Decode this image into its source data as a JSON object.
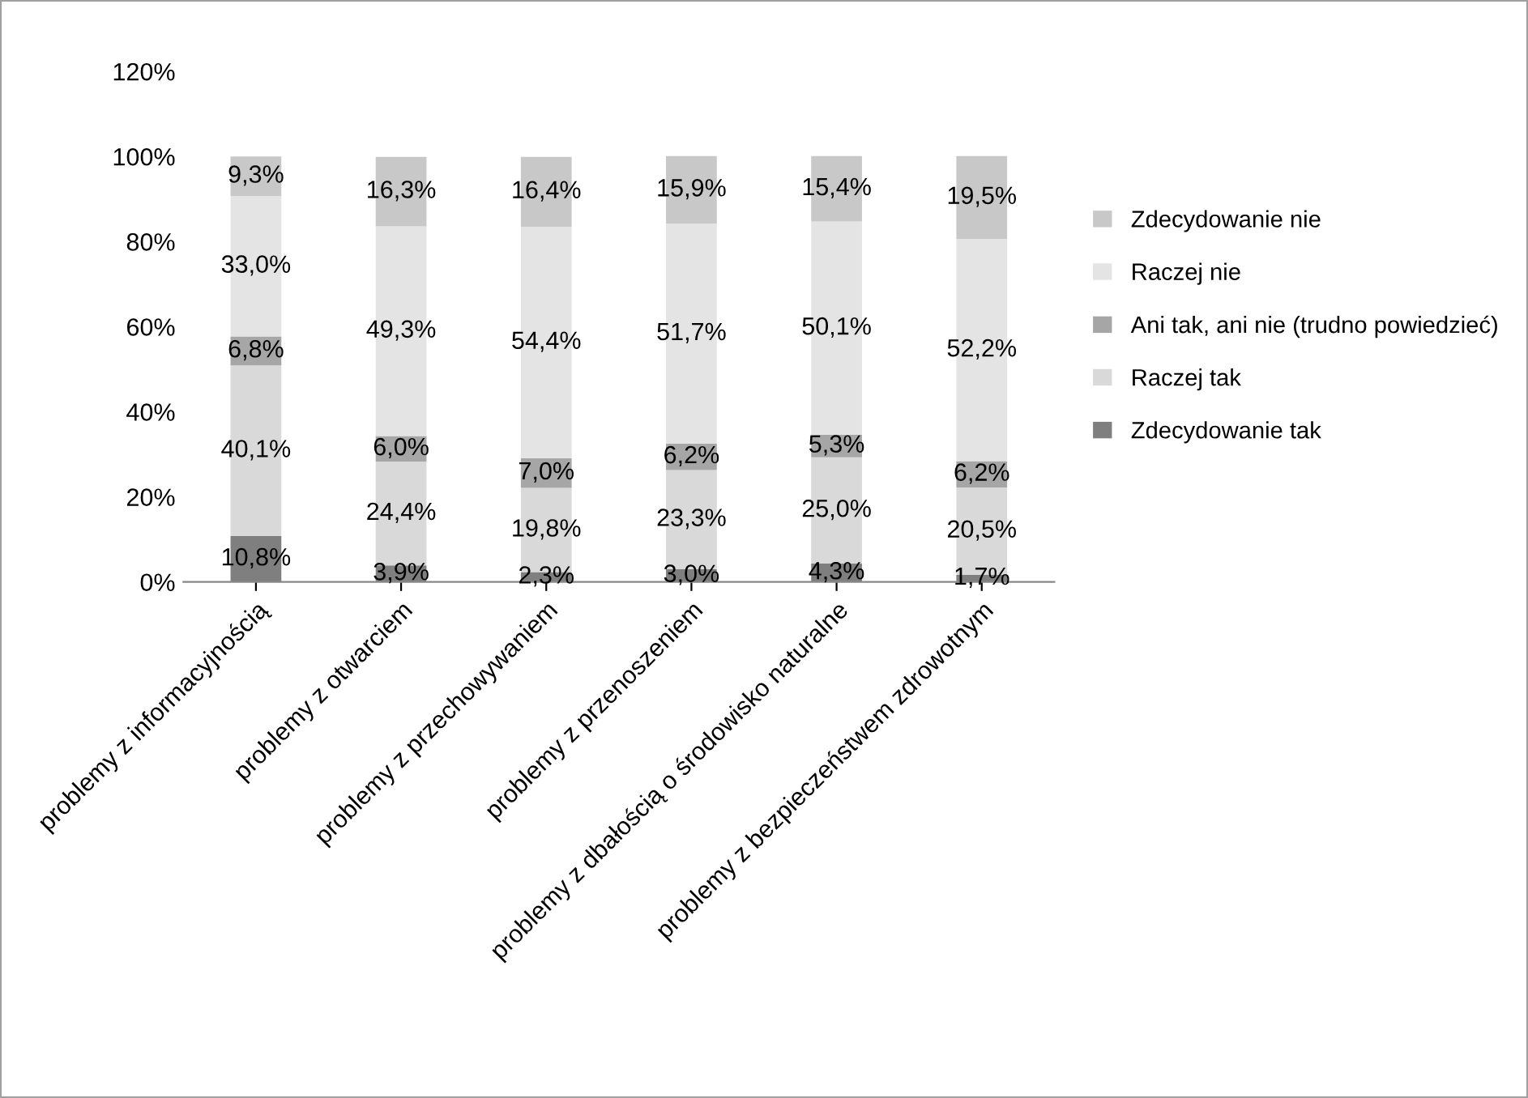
{
  "chart_data": {
    "type": "bar",
    "stacked": true,
    "categories": [
      "problemy z informacyjnością",
      "problemy z otwarciem",
      "problemy z przechowywaniem",
      "problemy z przenoszeniem",
      "problemy z dbałością o środowisko naturalne",
      "problemy z bezpieczeństwem zdrowotnym"
    ],
    "series": [
      {
        "name": "Zdecydowanie tak",
        "color": "#7f7f7f",
        "values": [
          10.8,
          3.9,
          2.3,
          3.0,
          4.3,
          1.7
        ],
        "value_labels": [
          "10,8%",
          "3,9%",
          "2,3%",
          "3,0%",
          "4,3%",
          "1,7%"
        ]
      },
      {
        "name": "Raczej tak",
        "color": "#d9d9d9",
        "values": [
          40.1,
          24.4,
          19.8,
          23.3,
          25.0,
          20.5
        ],
        "value_labels": [
          "40,1%",
          "24,4%",
          "19,8%",
          "23,3%",
          "25,0%",
          "20,5%"
        ]
      },
      {
        "name": "Ani tak, ani nie (trudno powiedzieć)",
        "color": "#a6a6a6",
        "values": [
          6.8,
          6.0,
          7.0,
          6.2,
          5.3,
          6.2
        ],
        "value_labels": [
          "6,8%",
          "6,0%",
          "7,0%",
          "6,2%",
          "5,3%",
          "6,2%"
        ]
      },
      {
        "name": "Raczej nie",
        "color": "#e4e4e4",
        "values": [
          33.0,
          49.3,
          54.4,
          51.7,
          50.1,
          52.2
        ],
        "value_labels": [
          "33,0%",
          "49,3%",
          "54,4%",
          "51,7%",
          "50,1%",
          "52,2%"
        ]
      },
      {
        "name": "Zdecydowanie nie",
        "color": "#c8c8c8",
        "values": [
          9.3,
          16.3,
          16.4,
          15.9,
          15.4,
          19.5
        ],
        "value_labels": [
          "9,3%",
          "16,3%",
          "16,4%",
          "15,9%",
          "15,4%",
          "19,5%"
        ]
      }
    ],
    "ylim": [
      0,
      120
    ],
    "yticks": [
      {
        "value": 0,
        "label": "0%"
      },
      {
        "value": 20,
        "label": "20%"
      },
      {
        "value": 40,
        "label": "40%"
      },
      {
        "value": 60,
        "label": "60%"
      },
      {
        "value": 80,
        "label": "80%"
      },
      {
        "value": 100,
        "label": "100%"
      },
      {
        "value": 120,
        "label": "120%"
      }
    ],
    "grid": false,
    "legend": "right"
  }
}
